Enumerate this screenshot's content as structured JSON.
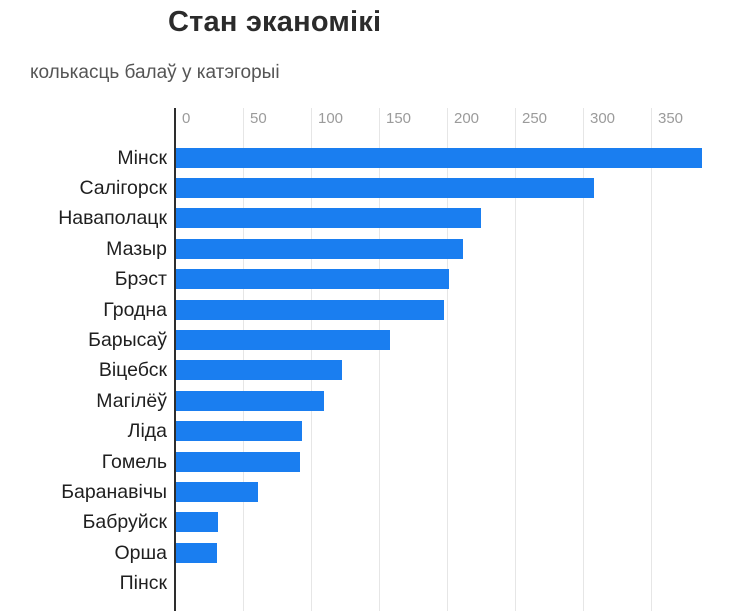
{
  "chart_data": {
    "type": "bar",
    "orientation": "horizontal",
    "title": "Стан эканомікі",
    "subtitle": "колькасць балаў у катэгорыі",
    "categories": [
      "Мінск",
      "Салігорск",
      "Наваполацк",
      "Мазыр",
      "Брэст",
      "Гродна",
      "Барысаў",
      "Віцебск",
      "Магілёў",
      "Ліда",
      "Гомель",
      "Баранавічы",
      "Бабруйск",
      "Орша",
      "Пінск"
    ],
    "values": [
      387,
      307,
      224,
      211,
      201,
      197,
      157,
      122,
      109,
      93,
      91,
      60,
      31,
      30,
      0
    ],
    "xlabel": "",
    "ylabel": "",
    "xlim": [
      0,
      400
    ],
    "xticks": [
      0,
      50,
      100,
      150,
      200,
      250,
      300,
      350
    ],
    "grid": true,
    "legend": "none",
    "colors": {
      "bar": "#1a7ef0",
      "gridline": "#e6e6e6",
      "axis_line": "#2e2e2e",
      "tick_label": "#9b9b9b",
      "category_label": "#1f1f1f",
      "title": "#2b2b2b",
      "subtitle": "#555555"
    }
  }
}
